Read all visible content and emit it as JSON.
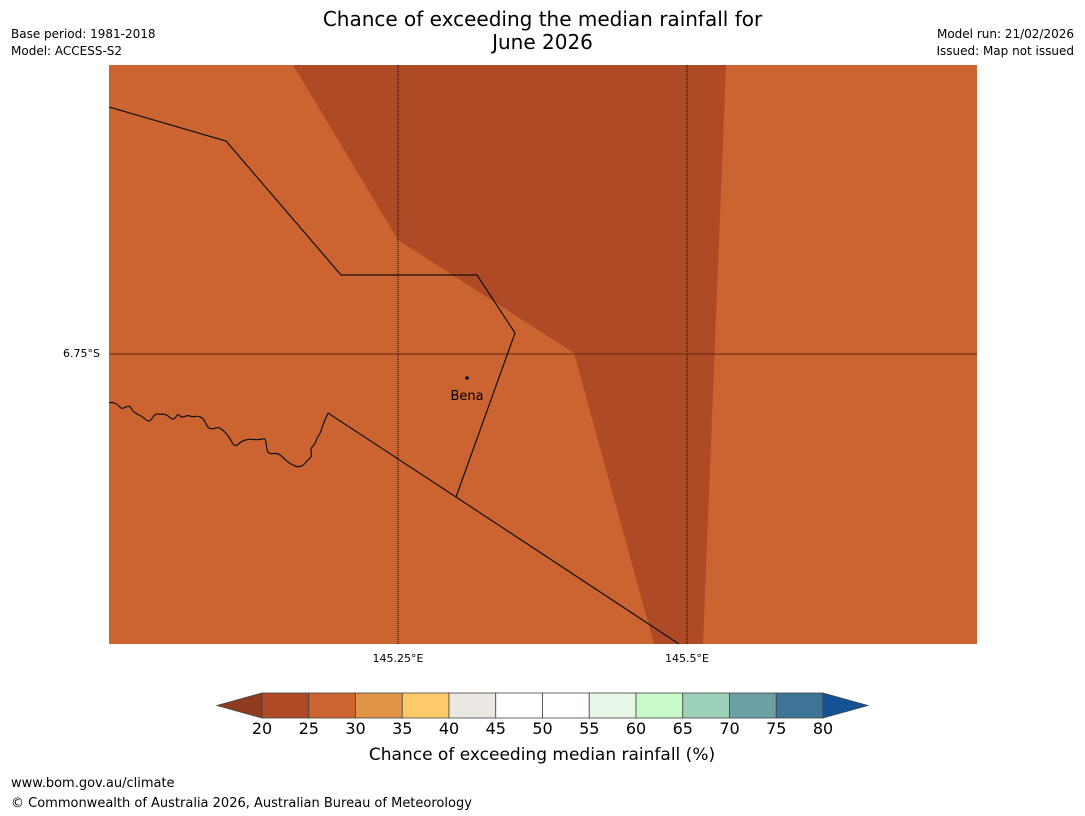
{
  "title": {
    "line1": "Chance of exceeding the median rainfall for",
    "line2": "June 2026"
  },
  "meta_left": {
    "base_period": "Base period: 1981-2018",
    "model": "Model: ACCESS-S2"
  },
  "meta_right": {
    "model_run": "Model run: 21/02/2026",
    "issued": "Issued: Map not issued"
  },
  "map": {
    "lat_labels": [
      "6.75°S"
    ],
    "lon_labels": [
      "145.25°E",
      "145.5°E"
    ],
    "places": [
      {
        "name": "Bena",
        "lon": 145.31,
        "lat": -6.755
      }
    ],
    "colors": {
      "band_20_25": "#ae4a25",
      "band_25_30": "#cb6431",
      "border": "#111111",
      "gridline": "#000000",
      "lat_line": "#5a2a12"
    }
  },
  "colorbar": {
    "title": "Chance of exceeding median rainfall (%)",
    "ticks": [
      "20",
      "25",
      "30",
      "35",
      "40",
      "45",
      "50",
      "55",
      "60",
      "65",
      "70",
      "75",
      "80"
    ],
    "low_extend_color": "#8f3b20",
    "high_extend_color": "#135294",
    "bins": [
      {
        "range": "20-25",
        "color": "#ae4a25"
      },
      {
        "range": "25-30",
        "color": "#cb6431"
      },
      {
        "range": "30-35",
        "color": "#e19448"
      },
      {
        "range": "35-40",
        "color": "#fdca6a"
      },
      {
        "range": "40-45",
        "color": "#ebe7e2"
      },
      {
        "range": "45-50",
        "color": "#ffffff"
      },
      {
        "range": "50-55",
        "color": "#ffffff"
      },
      {
        "range": "55-60",
        "color": "#e8f6e7"
      },
      {
        "range": "60-65",
        "color": "#c7fac8"
      },
      {
        "range": "65-70",
        "color": "#9dd0b8"
      },
      {
        "range": "70-75",
        "color": "#6aa0a4"
      },
      {
        "range": "75-80",
        "color": "#3e7496"
      }
    ]
  },
  "footer": {
    "url": "www.bom.gov.au/climate",
    "copyright": "© Commonwealth of Australia 2026, Australian Bureau of Meteorology"
  }
}
